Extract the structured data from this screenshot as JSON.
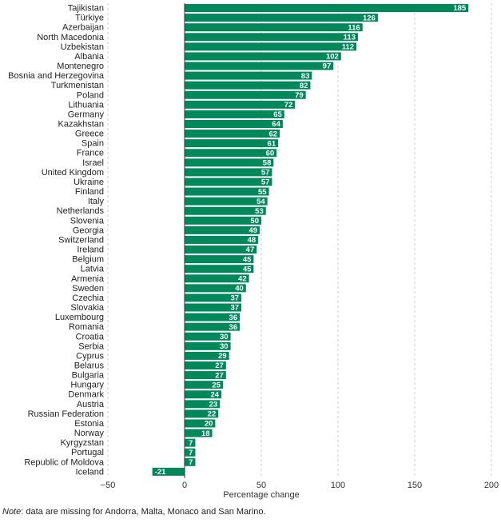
{
  "colors": {
    "bar": "#00875a",
    "label_bg": "#ffffff"
  },
  "chart_data": {
    "type": "bar",
    "orientation": "horizontal",
    "categories": [
      "Tajikistan",
      "Türkiye",
      "Azerbaijan",
      "North Macedonia",
      "Uzbekistan",
      "Albania",
      "Montenegro",
      "Bosnia and Herzegovina",
      "Turkmenistan",
      "Poland",
      "Lithuania",
      "Germany",
      "Kazakhstan",
      "Greece",
      "Spain",
      "France",
      "Israel",
      "United Kingdom",
      "Ukraine",
      "Finland",
      "Italy",
      "Netherlands",
      "Slovenia",
      "Georgia",
      "Switzerland",
      "Ireland",
      "Belgium",
      "Latvia",
      "Armenia",
      "Sweden",
      "Czechia",
      "Slovakia",
      "Luxembourg",
      "Romania",
      "Croatia",
      "Serbia",
      "Cyprus",
      "Belarus",
      "Bulgaria",
      "Hungary",
      "Denmark",
      "Austria",
      "Russian Federation",
      "Estonia",
      "Norway",
      "Kyrgyzstan",
      "Portugal",
      "Republic of Moldova",
      "Iceland"
    ],
    "values": [
      185,
      126,
      116,
      113,
      112,
      102,
      97,
      83,
      82,
      79,
      72,
      65,
      64,
      62,
      61,
      60,
      58,
      57,
      57,
      55,
      54,
      53,
      50,
      49,
      48,
      47,
      45,
      45,
      42,
      40,
      37,
      37,
      36,
      36,
      30,
      30,
      29,
      27,
      27,
      25,
      24,
      23,
      22,
      20,
      18,
      7,
      7,
      7,
      -21
    ],
    "value_labels": [
      "185",
      "126",
      "116",
      "113",
      "112",
      "102",
      "97",
      "83",
      "82",
      "79",
      "72",
      "65",
      "64",
      "62",
      "61",
      "60",
      "58",
      "57",
      "57",
      "55",
      "54",
      "53",
      "50",
      "49",
      "48",
      "47",
      "45",
      "45",
      "42",
      "40",
      "37",
      "37",
      "36",
      "36",
      "30",
      "30",
      "29",
      "27",
      "27",
      "25",
      "24",
      "23",
      "22",
      "20",
      "18",
      "7",
      "7",
      "7",
      "-21"
    ],
    "xlabel": "Percentage change",
    "xlim": [
      -50,
      200
    ],
    "xticks": [
      -50,
      0,
      50,
      100,
      150,
      200
    ],
    "xtick_labels": [
      "−50",
      "0",
      "50",
      "100",
      "150",
      "200"
    ],
    "grid": "vertical dashed"
  },
  "note": {
    "label": "Note",
    "text": ":  data are missing for Andorra, Malta, Monaco and San Marino."
  }
}
